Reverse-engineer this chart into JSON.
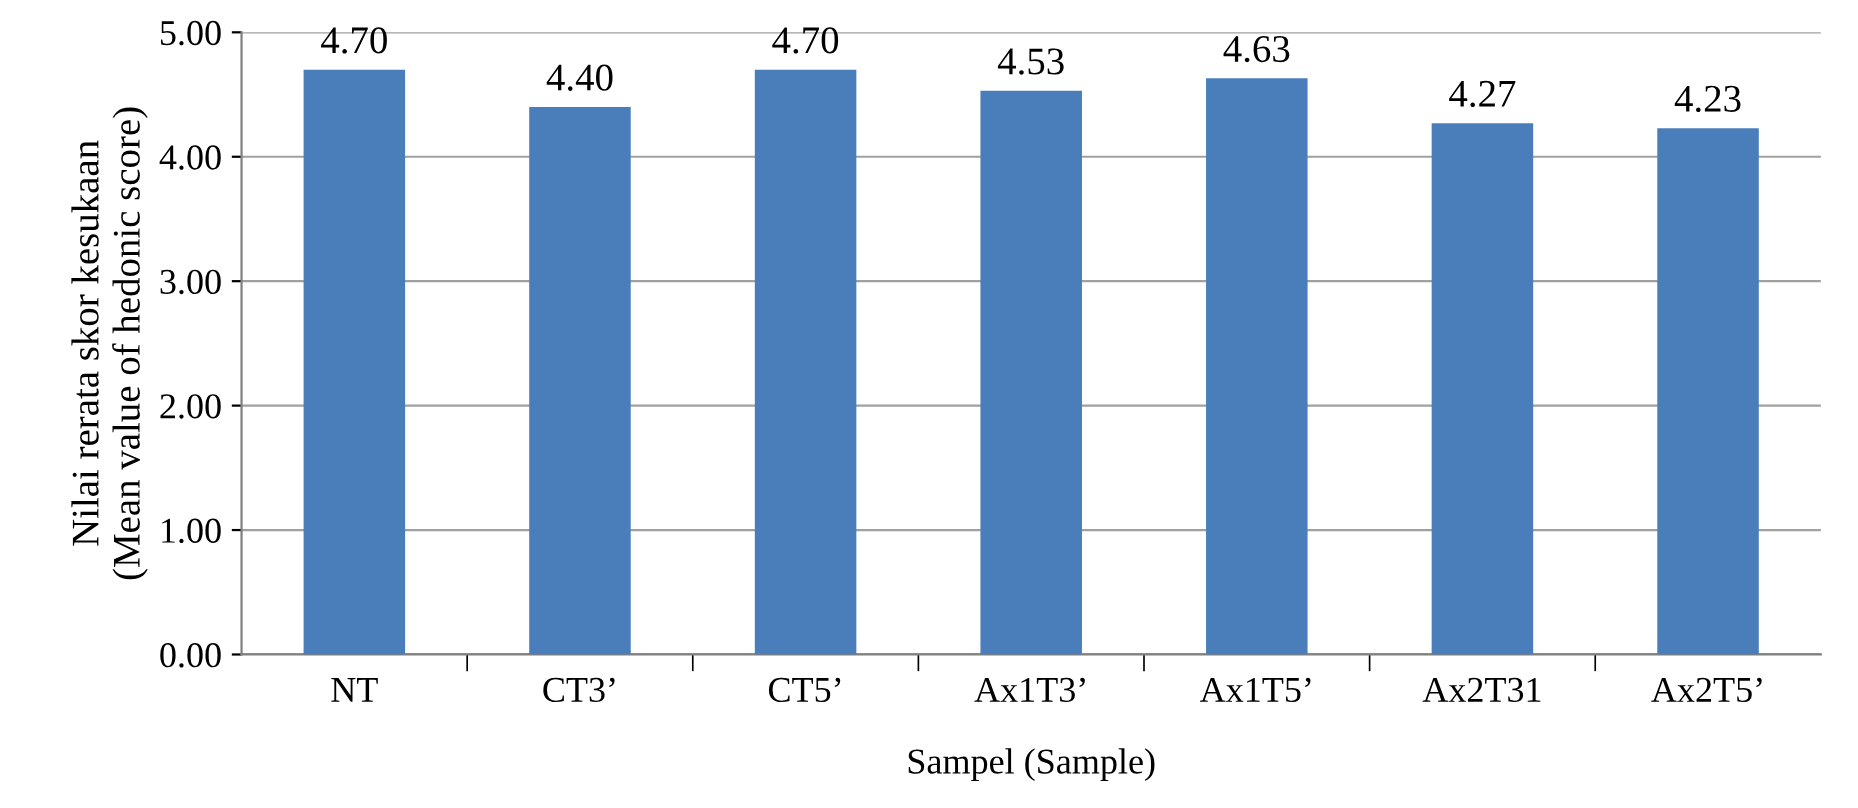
{
  "chart_data": {
    "type": "bar",
    "xlabel": "Sampel (Sample)",
    "ylabel": "Nilai rerata skor kesukaan\n(Mean value of hedonic score)",
    "categories": [
      "NT",
      "CT3’",
      "CT5’",
      "Ax1T3’",
      "Ax1T5’",
      "Ax2T31",
      "Ax2T5’"
    ],
    "values": [
      4.7,
      4.4,
      4.7,
      4.53,
      4.63,
      4.27,
      4.23
    ],
    "value_labels": [
      "4.70",
      "4.40",
      "4.70",
      "4.53",
      "4.63",
      "4.27",
      "4.23"
    ],
    "color": "#4a7ebb",
    "ylim": [
      0,
      5
    ],
    "yticks": [
      {
        "value": 0,
        "label": "0.00"
      },
      {
        "value": 1,
        "label": "1.00"
      },
      {
        "value": 2,
        "label": "2.00"
      },
      {
        "value": 3,
        "label": "3.00"
      },
      {
        "value": 4,
        "label": "4.00"
      },
      {
        "value": 5,
        "label": "5.00"
      }
    ],
    "grid": "y",
    "legend": false
  }
}
